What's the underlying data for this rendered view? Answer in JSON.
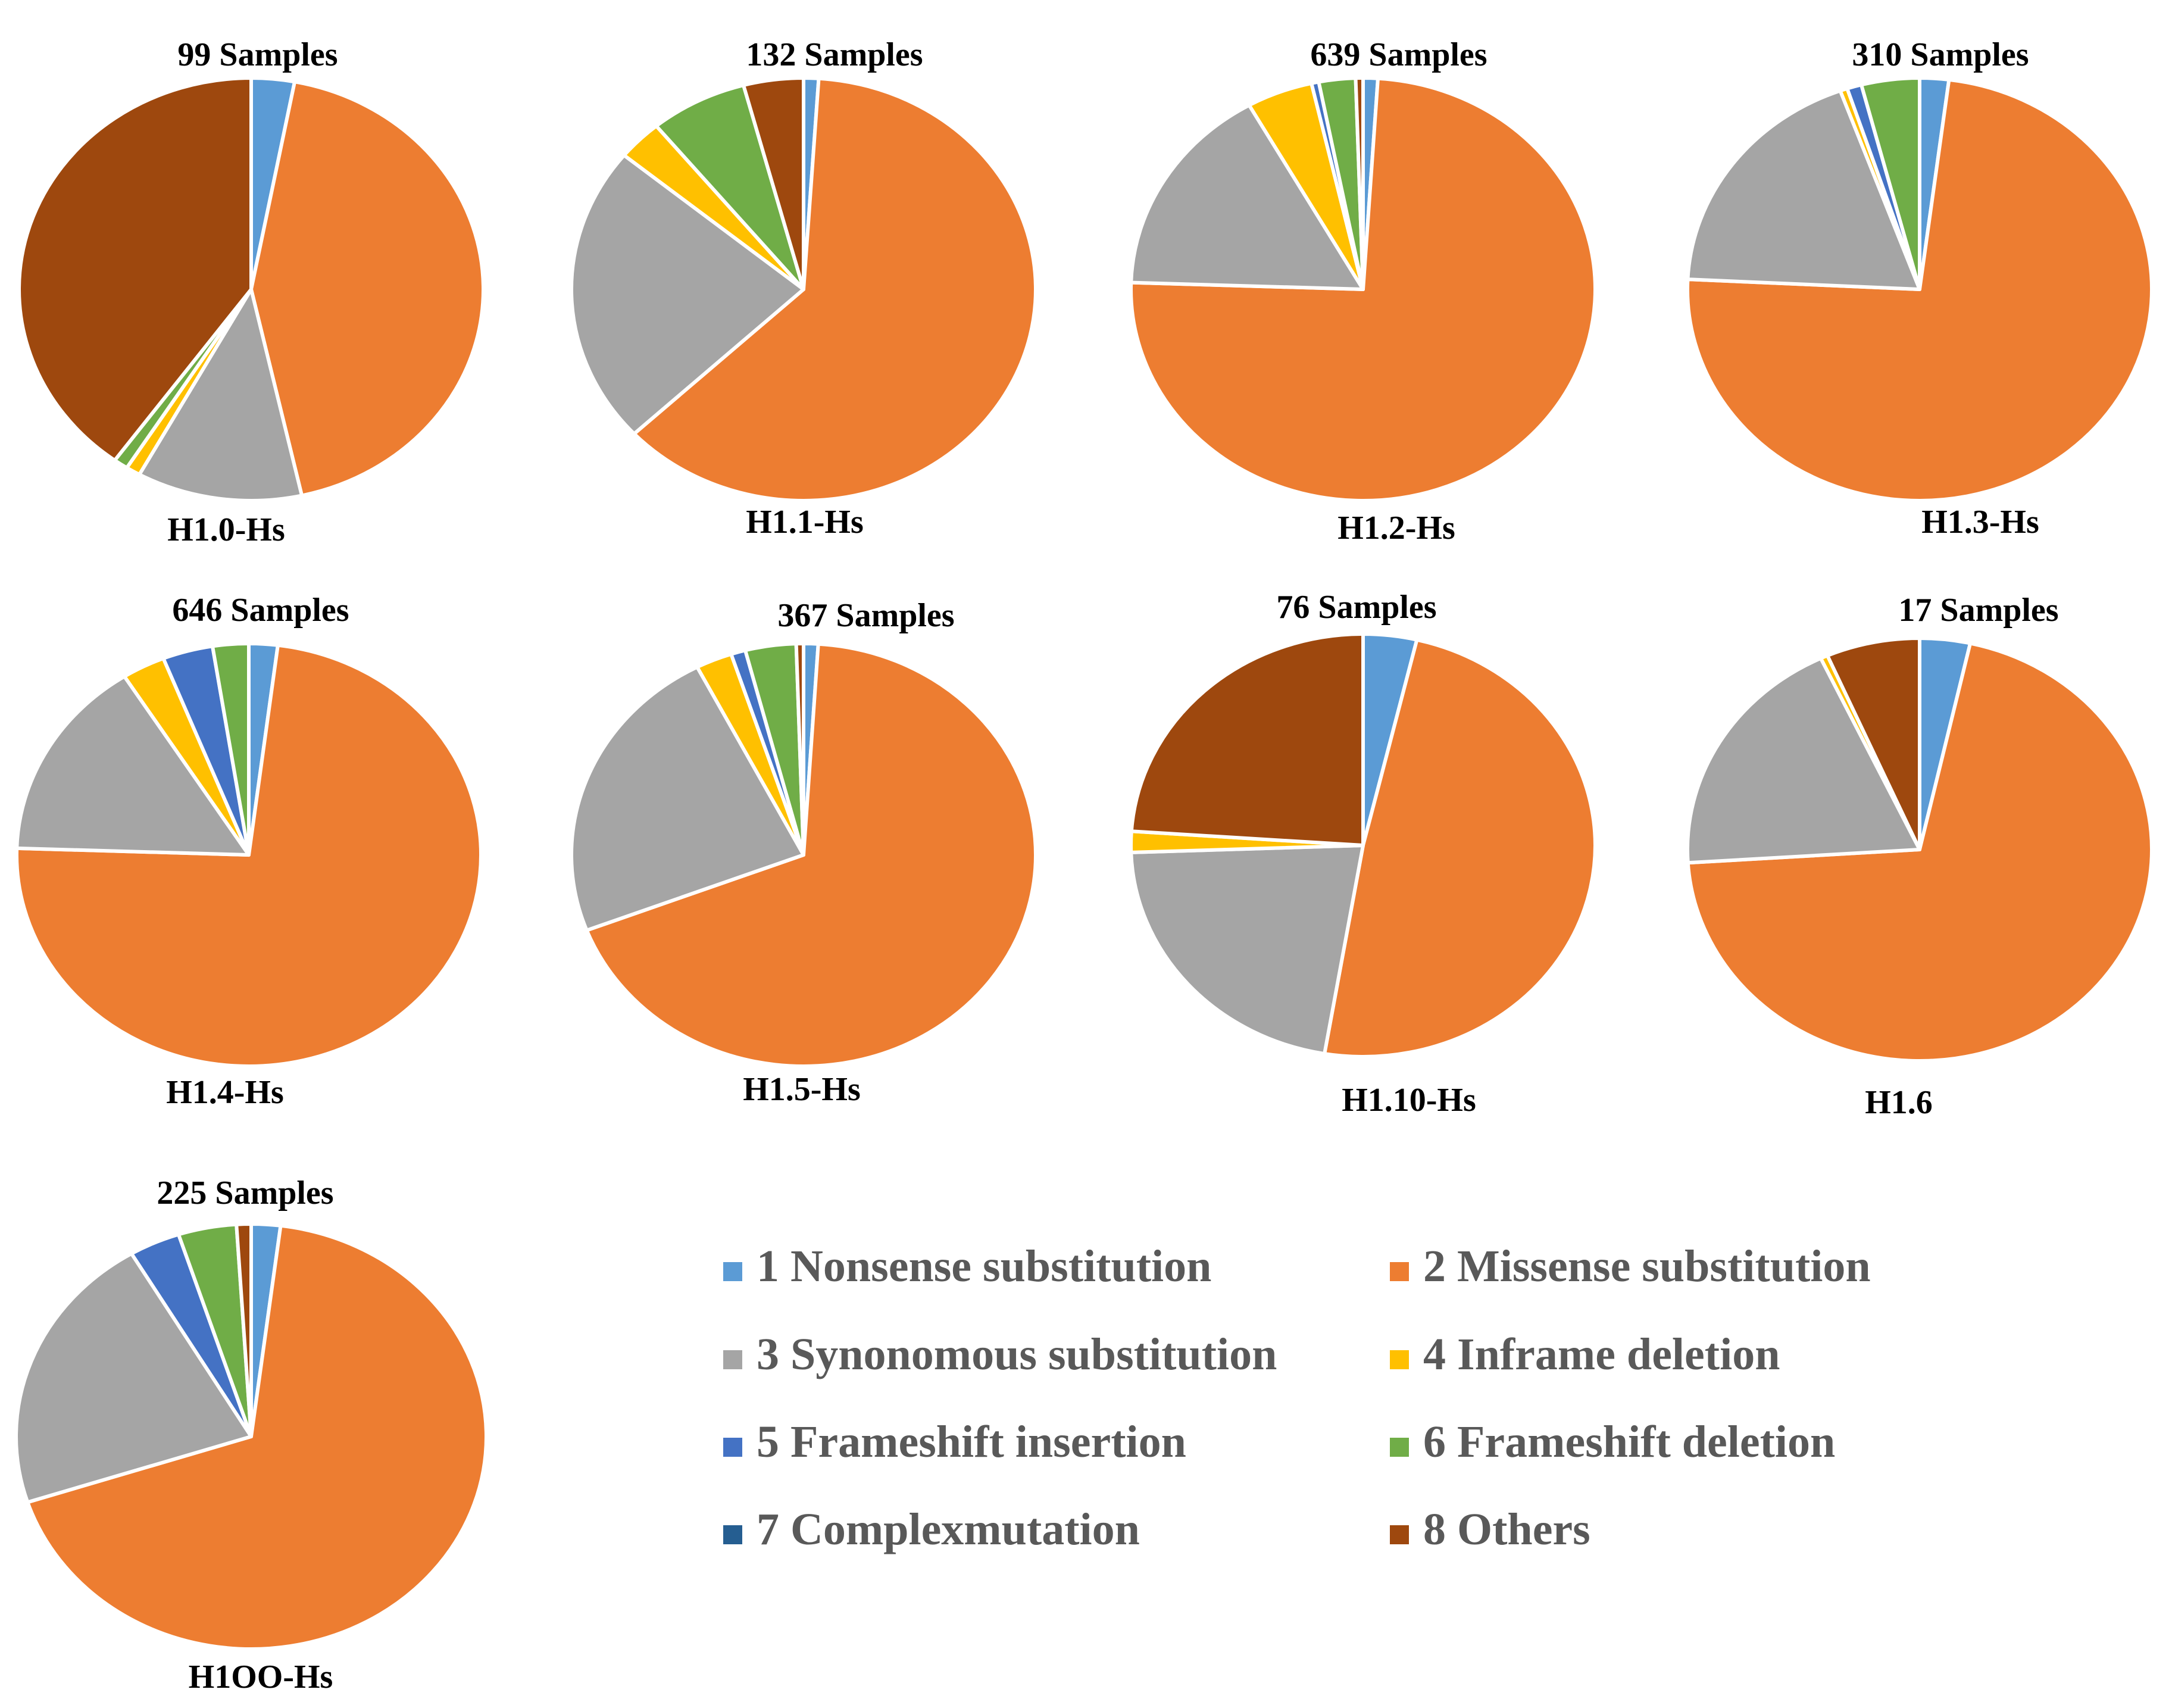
{
  "colors": {
    "nonsense": "#5B9BD5",
    "missense": "#ED7D31",
    "synonymous": "#A5A5A5",
    "inframe_deletion": "#FFC000",
    "frameshift_insertion": "#4472C4",
    "frameshift_deletion": "#70AD47",
    "complexmutation": "#255E91",
    "others": "#9E480E"
  },
  "legend": {
    "items": [
      {
        "key": "nonsense",
        "label": "1 Nonsense substitution"
      },
      {
        "key": "missense",
        "label": "2 Missense substitution"
      },
      {
        "key": "synonymous",
        "label": "3 Synonomous substitution"
      },
      {
        "key": "inframe_deletion",
        "label": "4 Inframe deletion"
      },
      {
        "key": "frameshift_insertion",
        "label": "5 Frameshift insertion"
      },
      {
        "key": "frameshift_deletion",
        "label": "6 Frameshift deletion"
      },
      {
        "key": "complexmutation",
        "label": "7 Complexmutation"
      },
      {
        "key": "others",
        "label": "8 Others"
      }
    ]
  },
  "chart_data": [
    {
      "type": "pie",
      "title": "99 Samples",
      "subtitle": "H1.0-Hs",
      "categories": [
        "1 Nonsense substitution",
        "2 Missense substitution",
        "3 Synonomous substitution",
        "4 Inframe deletion",
        "5 Frameshift insertion",
        "6 Frameshift deletion",
        "7 Complexmutation",
        "8 Others"
      ],
      "values": [
        3.0,
        43.5,
        11.5,
        1.0,
        0,
        1.0,
        0,
        40.0
      ]
    },
    {
      "type": "pie",
      "title": "132 Samples",
      "subtitle": "H1.1-Hs",
      "categories": [
        "1 Nonsense substitution",
        "2 Missense substitution",
        "3 Synonomous substitution",
        "4 Inframe deletion",
        "5 Frameshift insertion",
        "6 Frameshift deletion",
        "7 Complexmutation",
        "8 Others"
      ],
      "values": [
        1.0,
        59.5,
        22.0,
        3.0,
        0,
        6.5,
        0,
        4.0
      ]
    },
    {
      "type": "pie",
      "title": "639 Samples",
      "subtitle": "H1.2-Hs",
      "categories": [
        "1 Nonsense substitution",
        "2 Missense substitution",
        "3 Synonomous substitution",
        "4 Inframe deletion",
        "5 Frameshift insertion",
        "6 Frameshift deletion",
        "7 Complexmutation",
        "8 Others"
      ],
      "values": [
        1.0,
        73.0,
        16.0,
        4.5,
        0.5,
        2.5,
        0,
        0.5
      ]
    },
    {
      "type": "pie",
      "title": "310 Samples",
      "subtitle": "H1.3-Hs",
      "categories": [
        "1 Nonsense substitution",
        "2 Missense substitution",
        "3 Synonomous substitution",
        "4 Inframe deletion",
        "5 Frameshift insertion",
        "6 Frameshift deletion",
        "7 Complexmutation",
        "8 Others"
      ],
      "values": [
        2.0,
        73.0,
        18.5,
        0.5,
        1.0,
        4.0,
        0,
        0
      ]
    },
    {
      "type": "pie",
      "title": "646 Samples",
      "subtitle": "H1.4-Hs",
      "categories": [
        "1 Nonsense substitution",
        "2 Missense substitution",
        "3 Synonomous substitution",
        "4 Inframe deletion",
        "5 Frameshift insertion",
        "6 Frameshift deletion",
        "7 Complexmutation",
        "8 Others"
      ],
      "values": [
        2.0,
        73.5,
        15.5,
        3.0,
        3.5,
        2.5,
        0,
        0
      ]
    },
    {
      "type": "pie",
      "title": "367 Samples",
      "subtitle": "H1.5-Hs",
      "categories": [
        "1 Nonsense substitution",
        "2 Missense substitution",
        "3 Synonomous substitution",
        "4 Inframe deletion",
        "5 Frameshift insertion",
        "6 Frameshift deletion",
        "7 Complexmutation",
        "8 Others"
      ],
      "values": [
        1.0,
        67.5,
        23.0,
        2.5,
        1.0,
        3.5,
        0,
        0.5
      ]
    },
    {
      "type": "pie",
      "title": "76 Samples",
      "subtitle": "H1.10-Hs",
      "categories": [
        "1 Nonsense substitution",
        "2 Missense substitution",
        "3 Synonomous substitution",
        "4 Inframe deletion",
        "5 Frameshift insertion",
        "6 Frameshift deletion",
        "7 Complexmutation",
        "8 Others"
      ],
      "values": [
        3.5,
        46.0,
        20.5,
        1.5,
        0,
        0,
        0,
        22.5
      ]
    },
    {
      "type": "pie",
      "title": "17 Samples",
      "subtitle": "H1.6",
      "categories": [
        "1 Nonsense substitution",
        "2 Missense substitution",
        "3 Synonomous substitution",
        "4 Inframe deletion",
        "5 Frameshift insertion",
        "6 Frameshift deletion",
        "7 Complexmutation",
        "8 Others"
      ],
      "values": [
        3.5,
        70.5,
        19.0,
        0.5,
        0,
        0,
        0,
        6.5
      ]
    },
    {
      "type": "pie",
      "title": "225 Samples",
      "subtitle": "H1OO-Hs",
      "categories": [
        "1 Nonsense substitution",
        "2 Missense substitution",
        "3 Synonomous substitution",
        "4 Inframe deletion",
        "5 Frameshift insertion",
        "6 Frameshift deletion",
        "7 Complexmutation",
        "8 Others"
      ],
      "values": [
        2.0,
        68.0,
        21.5,
        0,
        3.5,
        4.0,
        0,
        1.0
      ]
    }
  ]
}
